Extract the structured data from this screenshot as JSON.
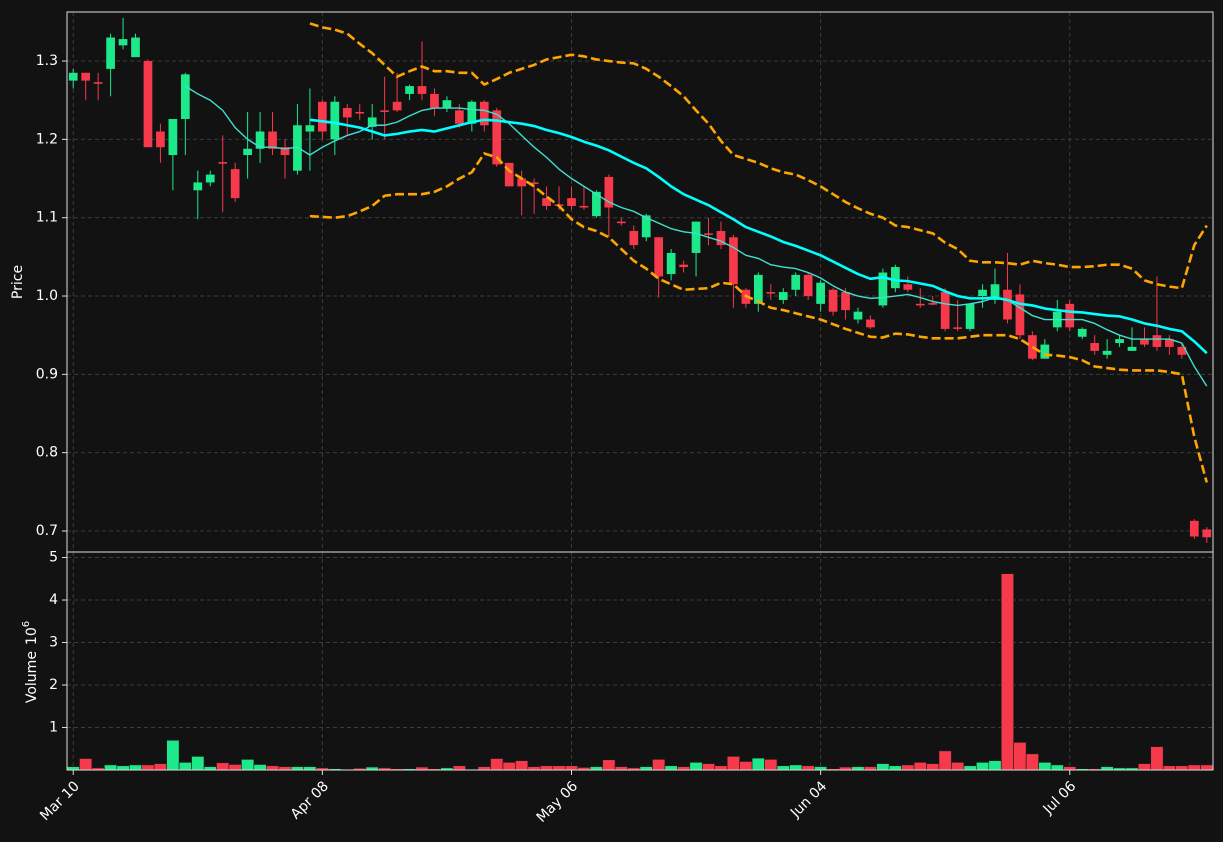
{
  "chart_data": {
    "type": "candlestick",
    "categories": [
      "Mar 10",
      null,
      null,
      null,
      null,
      null,
      null,
      null,
      null,
      null,
      null,
      null,
      null,
      null,
      null,
      null,
      null,
      null,
      null,
      null,
      "Apr 08",
      null,
      null,
      null,
      null,
      null,
      null,
      null,
      null,
      null,
      null,
      null,
      null,
      null,
      null,
      null,
      null,
      null,
      null,
      null,
      "May 06",
      null,
      null,
      null,
      null,
      null,
      null,
      null,
      null,
      null,
      null,
      null,
      null,
      null,
      null,
      null,
      null,
      null,
      null,
      null,
      "Jun 04",
      null,
      null,
      null,
      null,
      null,
      null,
      null,
      null,
      null,
      null,
      null,
      null,
      null,
      null,
      null,
      null,
      null,
      null,
      null,
      "Jul 06",
      null,
      null,
      null,
      null,
      null,
      null,
      null,
      null,
      null,
      null,
      null
    ],
    "open": [
      1.275,
      1.285,
      1.273,
      1.29,
      1.32,
      1.305,
      1.3,
      1.21,
      1.18,
      1.226,
      1.135,
      1.145,
      1.171,
      1.162,
      1.18,
      1.188,
      1.21,
      1.19,
      1.16,
      1.21,
      1.248,
      1.2,
      1.24,
      1.235,
      1.216,
      1.237,
      1.248,
      1.258,
      1.268,
      1.258,
      1.24,
      1.237,
      1.22,
      1.248,
      1.237,
      1.17,
      1.15,
      1.145,
      1.125,
      1.117,
      1.125,
      1.115,
      1.102,
      1.152,
      1.095,
      1.083,
      1.075,
      1.075,
      1.028,
      1.04,
      1.055,
      1.08,
      1.083,
      1.075,
      1.008,
      0.99,
      1.005,
      0.995,
      1.008,
      1.027,
      0.99,
      1.008,
      1.005,
      0.97,
      0.97,
      0.988,
      1.01,
      1.015,
      0.99,
      0.991,
      1.005,
      0.96,
      0.958,
      1.0,
      0.995,
      1.008,
      1.002,
      0.95,
      0.92,
      0.96,
      0.99,
      0.948,
      0.94,
      0.925,
      0.94,
      0.93,
      0.945,
      0.95,
      0.945,
      0.935,
      0.713,
      0.702
    ],
    "high": [
      1.29,
      1.285,
      1.285,
      1.335,
      1.355,
      1.335,
      1.302,
      1.22,
      1.226,
      1.285,
      1.16,
      1.16,
      1.205,
      1.17,
      1.235,
      1.235,
      1.235,
      1.2,
      1.245,
      1.265,
      1.25,
      1.255,
      1.245,
      1.245,
      1.245,
      1.28,
      1.285,
      1.27,
      1.325,
      1.265,
      1.255,
      1.245,
      1.25,
      1.25,
      1.24,
      1.17,
      1.16,
      1.15,
      1.14,
      1.14,
      1.14,
      1.14,
      1.135,
      1.155,
      1.1,
      1.09,
      1.105,
      1.075,
      1.06,
      1.045,
      1.095,
      1.1,
      1.095,
      1.078,
      1.01,
      1.03,
      1.015,
      1.01,
      1.03,
      1.03,
      1.02,
      1.01,
      1.01,
      0.985,
      0.975,
      1.035,
      1.04,
      1.025,
      1.01,
      1.0,
      1.01,
      0.995,
      0.99,
      1.015,
      1.035,
      1.055,
      1.015,
      0.955,
      0.945,
      0.995,
      0.995,
      0.96,
      0.95,
      0.945,
      0.95,
      0.96,
      0.96,
      1.025,
      0.95,
      0.94,
      0.715,
      0.705
    ],
    "low": [
      1.265,
      1.25,
      1.25,
      1.255,
      1.315,
      1.305,
      1.19,
      1.17,
      1.135,
      1.18,
      1.098,
      1.14,
      1.107,
      1.12,
      1.15,
      1.17,
      1.18,
      1.15,
      1.155,
      1.16,
      1.2,
      1.18,
      1.205,
      1.225,
      1.2,
      1.2,
      1.235,
      1.25,
      1.25,
      1.23,
      1.235,
      1.215,
      1.21,
      1.21,
      1.165,
      1.14,
      1.103,
      1.105,
      1.11,
      1.11,
      1.11,
      1.11,
      1.1,
      1.075,
      1.09,
      1.06,
      1.07,
      0.998,
      1.02,
      1.03,
      1.025,
      1.065,
      1.06,
      0.985,
      0.985,
      0.98,
      0.995,
      0.99,
      1.0,
      0.995,
      0.98,
      0.975,
      0.97,
      0.965,
      0.958,
      0.985,
      1.005,
      1.005,
      0.985,
      0.988,
      0.955,
      0.955,
      0.955,
      0.985,
      0.99,
      0.965,
      0.945,
      0.918,
      0.92,
      0.955,
      0.955,
      0.945,
      0.925,
      0.92,
      0.935,
      0.93,
      0.935,
      0.93,
      0.925,
      0.92,
      0.69,
      0.685
    ],
    "close": [
      1.285,
      1.275,
      1.271,
      1.33,
      1.328,
      1.33,
      1.19,
      1.19,
      1.226,
      1.283,
      1.145,
      1.155,
      1.169,
      1.125,
      1.188,
      1.21,
      1.188,
      1.18,
      1.218,
      1.218,
      1.21,
      1.248,
      1.228,
      1.233,
      1.228,
      1.235,
      1.237,
      1.268,
      1.258,
      1.24,
      1.25,
      1.22,
      1.248,
      1.218,
      1.168,
      1.14,
      1.14,
      1.143,
      1.115,
      1.115,
      1.115,
      1.113,
      1.133,
      1.113,
      1.093,
      1.065,
      1.103,
      1.025,
      1.055,
      1.037,
      1.095,
      1.078,
      1.065,
      1.015,
      0.99,
      1.027,
      1.003,
      1.005,
      1.027,
      1.0,
      1.017,
      0.98,
      0.982,
      0.98,
      0.96,
      1.03,
      1.037,
      1.008,
      0.988,
      0.989,
      0.958,
      0.958,
      0.99,
      1.008,
      1.015,
      0.97,
      0.95,
      0.92,
      0.938,
      0.98,
      0.96,
      0.958,
      0.93,
      0.93,
      0.945,
      0.935,
      0.938,
      0.935,
      0.935,
      0.925,
      0.693,
      0.692
    ],
    "up_color": "#1de98b",
    "down_color": "#f6394b",
    "ylabel": "Price",
    "ylim": [
      0.6732,
      1.3626
    ],
    "yticks": [
      0.7,
      0.8,
      0.9,
      {
        "value": 1,
        "label": "1.0"
      },
      1.1,
      1.2,
      1.3
    ],
    "grid": true,
    "lines": [
      {
        "color": "#40e0d0",
        "style": "solid",
        "weight": "thin",
        "values": [
          null,
          null,
          null,
          null,
          null,
          null,
          null,
          null,
          null,
          1.268,
          1.258,
          1.25,
          1.237,
          1.215,
          1.2,
          1.19,
          1.19,
          1.188,
          1.19,
          1.18,
          1.19,
          1.198,
          1.205,
          1.21,
          1.218,
          1.218,
          1.222,
          1.23,
          1.237,
          1.24,
          1.24,
          1.24,
          1.238,
          1.237,
          1.232,
          1.22,
          1.205,
          1.19,
          1.177,
          1.162,
          1.15,
          1.14,
          1.13,
          1.12,
          1.113,
          1.108,
          1.1,
          1.093,
          1.086,
          1.082,
          1.08,
          1.075,
          1.07,
          1.062,
          1.052,
          1.048,
          1.04,
          1.037,
          1.035,
          1.03,
          1.023,
          1.013,
          1.005,
          1.0,
          0.997,
          0.998,
          1.0,
          1.002,
          0.998,
          0.993,
          0.99,
          0.988,
          0.99,
          0.993,
          0.998,
          0.995,
          0.985,
          0.975,
          0.97,
          0.97,
          0.97,
          0.97,
          0.965,
          0.957,
          0.95,
          0.945,
          0.945,
          0.945,
          0.945,
          0.94,
          0.91,
          0.885
        ]
      },
      {
        "color": "#00ffff",
        "style": "solid",
        "weight": "thick",
        "values": [
          null,
          null,
          null,
          null,
          null,
          null,
          null,
          null,
          null,
          null,
          null,
          null,
          null,
          null,
          null,
          null,
          null,
          null,
          null,
          1.225,
          1.223,
          1.221,
          1.218,
          1.215,
          1.21,
          1.205,
          1.207,
          1.21,
          1.212,
          1.21,
          1.214,
          1.218,
          1.222,
          1.225,
          1.224,
          1.222,
          1.22,
          1.217,
          1.212,
          1.208,
          1.203,
          1.197,
          1.192,
          1.186,
          1.178,
          1.17,
          1.163,
          1.152,
          1.14,
          1.13,
          1.123,
          1.116,
          1.107,
          1.098,
          1.088,
          1.082,
          1.076,
          1.069,
          1.064,
          1.058,
          1.052,
          1.044,
          1.036,
          1.028,
          1.022,
          1.024,
          1.02,
          1.019,
          1.016,
          1.013,
          1.006,
          1.0,
          0.997,
          0.997,
          0.998,
          0.995,
          0.99,
          0.988,
          0.984,
          0.982,
          0.98,
          0.979,
          0.977,
          0.975,
          0.974,
          0.97,
          0.965,
          0.962,
          0.958,
          0.955,
          0.942,
          0.927
        ]
      },
      {
        "color": "#ffa500",
        "style": "dashed",
        "weight": "thick",
        "values": [
          null,
          null,
          null,
          null,
          null,
          null,
          null,
          null,
          null,
          null,
          null,
          null,
          null,
          null,
          null,
          null,
          null,
          null,
          null,
          1.348,
          1.343,
          1.34,
          1.335,
          1.322,
          1.31,
          1.295,
          1.28,
          1.287,
          1.293,
          1.287,
          1.287,
          1.285,
          1.285,
          1.27,
          1.277,
          1.285,
          1.29,
          1.295,
          1.302,
          1.305,
          1.308,
          1.306,
          1.302,
          1.3,
          1.298,
          1.297,
          1.29,
          1.28,
          1.268,
          1.255,
          1.237,
          1.22,
          1.198,
          1.18,
          1.175,
          1.17,
          1.163,
          1.158,
          1.155,
          1.148,
          1.14,
          1.13,
          1.12,
          1.112,
          1.105,
          1.1,
          1.09,
          1.088,
          1.084,
          1.08,
          1.068,
          1.06,
          1.045,
          1.043,
          1.043,
          1.042,
          1.04,
          1.045,
          1.042,
          1.04,
          1.037,
          1.037,
          1.038,
          1.04,
          1.04,
          1.035,
          1.02,
          1.015,
          1.012,
          1.01,
          1.065,
          1.09
        ]
      },
      {
        "color": "#ffa500",
        "style": "dashed",
        "weight": "thick",
        "values": [
          null,
          null,
          null,
          null,
          null,
          null,
          null,
          null,
          null,
          null,
          null,
          null,
          null,
          null,
          null,
          null,
          null,
          null,
          null,
          1.102,
          1.101,
          1.1,
          1.102,
          1.108,
          1.115,
          1.128,
          1.13,
          1.13,
          1.13,
          1.133,
          1.14,
          1.15,
          1.158,
          1.182,
          1.177,
          1.16,
          1.15,
          1.14,
          1.127,
          1.115,
          1.098,
          1.088,
          1.083,
          1.075,
          1.06,
          1.045,
          1.035,
          1.022,
          1.015,
          1.008,
          1.009,
          1.01,
          1.017,
          1.015,
          1.0,
          0.993,
          0.985,
          0.982,
          0.978,
          0.974,
          0.97,
          0.964,
          0.958,
          0.953,
          0.948,
          0.947,
          0.952,
          0.951,
          0.948,
          0.946,
          0.946,
          0.946,
          0.948,
          0.95,
          0.95,
          0.95,
          0.945,
          0.935,
          0.925,
          0.924,
          0.922,
          0.918,
          0.91,
          0.908,
          0.906,
          0.905,
          0.905,
          0.905,
          0.903,
          0.9,
          0.82,
          0.762
        ]
      }
    ],
    "volume": {
      "ylabel": "Volume",
      "multiplier": "10",
      "exponent": "6",
      "ylim": [
        0,
        5.13
      ],
      "yticks": [
        1,
        2,
        3,
        4,
        5
      ],
      "values": [
        0.08,
        0.27,
        0.05,
        0.12,
        0.1,
        0.12,
        0.12,
        0.15,
        0.7,
        0.18,
        0.32,
        0.08,
        0.17,
        0.13,
        0.25,
        0.13,
        0.1,
        0.08,
        0.08,
        0.08,
        0.05,
        0.03,
        0.02,
        0.04,
        0.07,
        0.05,
        0.03,
        0.03,
        0.07,
        0.03,
        0.05,
        0.1,
        0.02,
        0.08,
        0.27,
        0.18,
        0.22,
        0.08,
        0.1,
        0.1,
        0.1,
        0.06,
        0.08,
        0.24,
        0.08,
        0.05,
        0.08,
        0.25,
        0.1,
        0.08,
        0.18,
        0.15,
        0.1,
        0.32,
        0.2,
        0.28,
        0.25,
        0.1,
        0.12,
        0.1,
        0.08,
        0.03,
        0.07,
        0.08,
        0.08,
        0.15,
        0.1,
        0.12,
        0.18,
        0.15,
        0.45,
        0.18,
        0.1,
        0.18,
        0.22,
        4.62,
        0.65,
        0.38,
        0.18,
        0.12,
        0.08,
        0.03,
        0.03,
        0.08,
        0.05,
        0.05,
        0.15,
        0.55,
        0.1,
        0.1,
        0.12,
        0.12
      ]
    }
  }
}
